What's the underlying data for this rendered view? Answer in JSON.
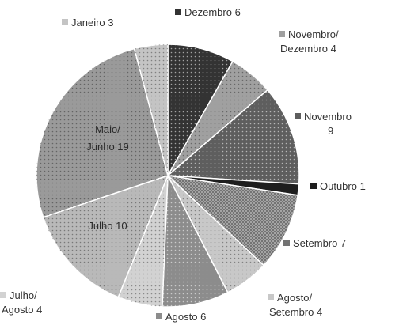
{
  "chart_data": {
    "type": "pie",
    "start": "top",
    "direction": "clockwise",
    "slices": [
      {
        "label": [
          "Dezembro 6"
        ],
        "value": 6,
        "color": "#333333",
        "pattern": "dots-light",
        "label_pos": "outside"
      },
      {
        "label": [
          "Novembro/",
          "Dezembro 4"
        ],
        "value": 4,
        "color": "#a0a0a0",
        "pattern": "dots-dark",
        "label_pos": "outside"
      },
      {
        "label": [
          "Novembro",
          "9"
        ],
        "value": 9,
        "color": "#5e5e5e",
        "pattern": "dots-light",
        "label_pos": "outside"
      },
      {
        "label": [
          "Outubro 1"
        ],
        "value": 1,
        "color": "#1e1e1e",
        "pattern": "none",
        "label_pos": "outside"
      },
      {
        "label": [
          "Setembro 7"
        ],
        "value": 7,
        "color": "#737373",
        "pattern": "checker",
        "label_pos": "outside"
      },
      {
        "label": [
          "Agosto/",
          "Setembro 4"
        ],
        "value": 4,
        "color": "#c8c8c8",
        "pattern": "dots-dark",
        "label_pos": "outside"
      },
      {
        "label": [
          "Agosto 6"
        ],
        "value": 6,
        "color": "#8c8c8c",
        "pattern": "dots-light",
        "label_pos": "outside"
      },
      {
        "label": [
          "Julho/",
          "Agosto 4"
        ],
        "value": 4,
        "color": "#d2d2d2",
        "pattern": "dots-dark",
        "label_pos": "outside"
      },
      {
        "label": [
          "Julho 10"
        ],
        "value": 10,
        "color": "#b9b9b9",
        "pattern": "dots-dark",
        "label_pos": "inside"
      },
      {
        "label": [
          "Maio/",
          "Junho 19"
        ],
        "value": 19,
        "color": "#9a9a9a",
        "pattern": "dots-dark",
        "label_pos": "inside"
      },
      {
        "label": [
          "Janeiro 3"
        ],
        "value": 3,
        "color": "#c4c4c4",
        "pattern": "dots-dark",
        "label_pos": "outside"
      }
    ],
    "legend": "none"
  }
}
